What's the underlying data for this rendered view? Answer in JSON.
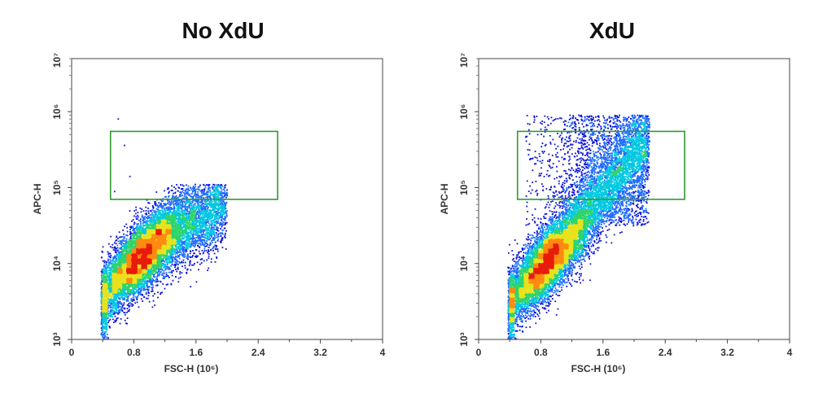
{
  "chart_data": [
    {
      "type": "scatter",
      "plot_style": "density-colored flow cytometry dot plot",
      "title": "No XdU",
      "xlabel": "FSC-H (10⁶)",
      "ylabel": "APC-H",
      "xlim": [
        0,
        4
      ],
      "ylim": [
        1000,
        5000000
      ],
      "yscale": "log",
      "x_ticks": [
        "0",
        "0.8",
        "1.6",
        "2.4",
        "3.2",
        "4"
      ],
      "y_ticks": [
        "10³",
        "10⁴",
        "10⁵",
        "10⁶",
        "10⁷"
      ],
      "gate": {
        "x_range": [
          0.5,
          2.65
        ],
        "y_range": [
          70000,
          550000
        ],
        "color": "#2e9a2e"
      },
      "population": {
        "center": {
          "x": 0.85,
          "y": 11000
        },
        "x_extent": [
          0.38,
          2.0
        ],
        "y_extent": [
          1000,
          110000
        ],
        "sparse_events": [
          {
            "x": 0.6,
            "y": 800000
          },
          {
            "x": 0.68,
            "y": 360000
          },
          {
            "x": 0.75,
            "y": 140000
          }
        ]
      },
      "density_colors": [
        "#0a12d8",
        "#1f6cff",
        "#00c8e0",
        "#2ed46a",
        "#e8e21c",
        "#ff8a10",
        "#e81c0c"
      ],
      "grid": false
    },
    {
      "type": "scatter",
      "plot_style": "density-colored flow cytometry dot plot",
      "title": "XdU",
      "xlabel": "FSC-H (10⁶)",
      "ylabel": "APC-H",
      "xlim": [
        0,
        4
      ],
      "ylim": [
        1000,
        5000000
      ],
      "yscale": "log",
      "x_ticks": [
        "0",
        "0.8",
        "1.6",
        "2.4",
        "3.2",
        "4"
      ],
      "y_ticks": [
        "10³",
        "10⁴",
        "10⁵",
        "10⁶",
        "10⁷"
      ],
      "gate": {
        "x_range": [
          0.5,
          2.65
        ],
        "y_range": [
          70000,
          550000
        ],
        "color": "#2e9a2e"
      },
      "population": {
        "center": {
          "x": 0.85,
          "y": 9500
        },
        "x_extent": [
          0.38,
          2.2
        ],
        "y_extent": [
          1000,
          900000
        ],
        "positive_tail": {
          "x_range": [
            0.6,
            2.2
          ],
          "y_range": [
            70000,
            900000
          ]
        }
      },
      "density_colors": [
        "#0a12d8",
        "#1f6cff",
        "#00c8e0",
        "#2ed46a",
        "#e8e21c",
        "#ff8a10",
        "#e81c0c"
      ],
      "grid": false
    }
  ]
}
